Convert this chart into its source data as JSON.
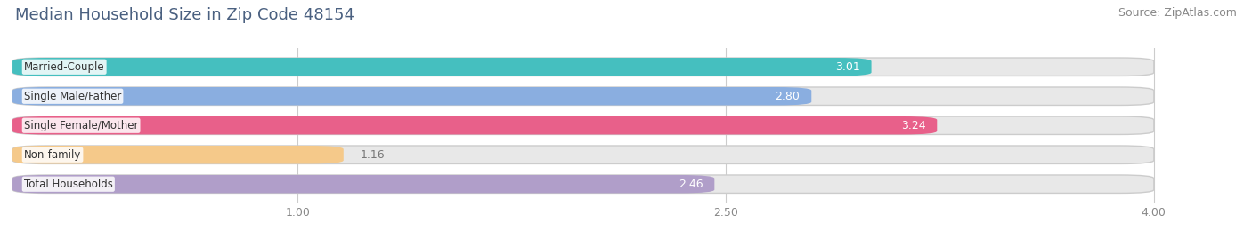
{
  "title": "Median Household Size in Zip Code 48154",
  "source": "Source: ZipAtlas.com",
  "categories": [
    "Married-Couple",
    "Single Male/Father",
    "Single Female/Mother",
    "Non-family",
    "Total Households"
  ],
  "values": [
    3.01,
    2.8,
    3.24,
    1.16,
    2.46
  ],
  "bar_colors": [
    "#45bfbf",
    "#8aaee0",
    "#e8608a",
    "#f5c98a",
    "#b09ec9"
  ],
  "xlim": [
    0.0,
    4.3
  ],
  "xmin": 0.0,
  "xmax": 4.0,
  "xticks": [
    1.0,
    2.5,
    4.0
  ],
  "label_color_inside": "#ffffff",
  "label_color_outside": "#777777",
  "title_fontsize": 13,
  "source_fontsize": 9,
  "bar_label_fontsize": 9,
  "category_fontsize": 8.5,
  "background_color": "#ffffff",
  "bar_background_color": "#e8e8e8",
  "bar_height": 0.62,
  "threshold_inside": 1.8
}
